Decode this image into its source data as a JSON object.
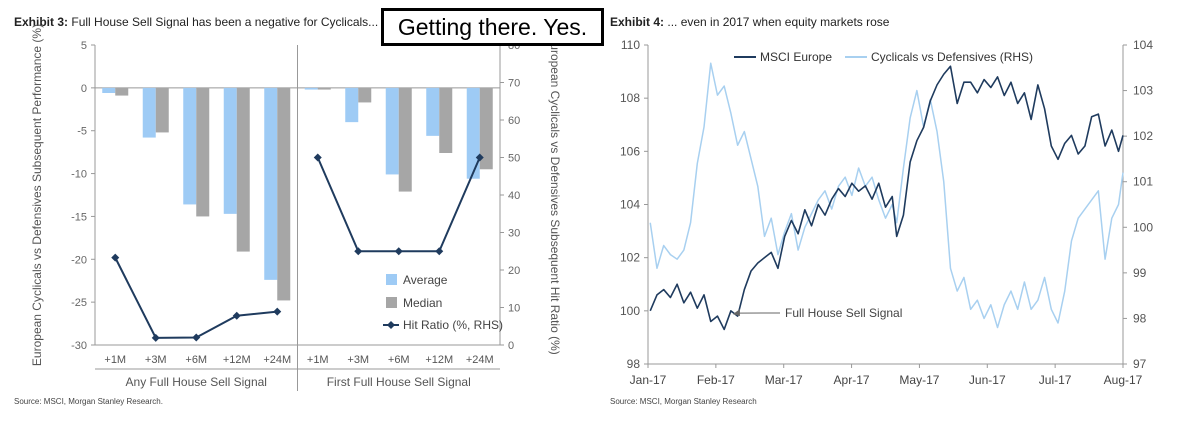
{
  "exhibit3": {
    "label": "Exhibit 3:",
    "title": "Full House Sell Signal has been a negative for Cyclicals...",
    "source": "Source: MSCI, Morgan Stanley Research."
  },
  "exhibit4": {
    "label": "Exhibit 4:",
    "title": "... even in 2017 when equity markets rose",
    "source": "Source: MSCI, Morgan Stanley Research"
  },
  "overlay_label": "Getting there. Yes.",
  "colors": {
    "average": "#9ecbf5",
    "median": "#a6a6a6",
    "hit_ratio": "#1f3b5e",
    "msci_europe": "#1f3b5e",
    "cyc_def": "#a8d0f0",
    "axis": "#999999"
  },
  "chart_data": [
    {
      "type": "bar",
      "title": "Full House Sell Signal has been a negative for Cyclicals...",
      "ylabel": "European Cyclicals vs Defensives Subsequent Performance (%)",
      "y2label": "European Cyclicals vs Defensives Subsequent Hit Ratio (%)",
      "ylim": [
        -30,
        5
      ],
      "yticks": [
        5,
        0,
        -5,
        -10,
        -15,
        -20,
        -25,
        -30
      ],
      "y2lim": [
        0,
        80
      ],
      "y2ticks": [
        80,
        70,
        60,
        50,
        40,
        30,
        20,
        10,
        0
      ],
      "groups": [
        "Any Full House Sell Signal",
        "First Full House Sell Signal"
      ],
      "categories": [
        "+1M",
        "+3M",
        "+6M",
        "+12M",
        "+24M",
        "+1M",
        "+3M",
        "+6M",
        "+12M",
        "+24M"
      ],
      "series": [
        {
          "name": "Average",
          "kind": "bar",
          "values": [
            -0.6,
            -5.8,
            -13.6,
            -14.7,
            -22.4,
            -0.2,
            -4.0,
            -10.1,
            -5.6,
            -10.6
          ]
        },
        {
          "name": "Median",
          "kind": "bar",
          "values": [
            -0.9,
            -5.2,
            -15.0,
            -19.1,
            -24.8,
            -0.2,
            -1.7,
            -12.1,
            -7.6,
            -9.5
          ]
        },
        {
          "name": "Hit Ratio (%, RHS)",
          "kind": "line",
          "axis": "right",
          "values": [
            23.3,
            1.9,
            2.0,
            7.8,
            8.9,
            50.0,
            25.0,
            25.0,
            25.0,
            50.0
          ]
        }
      ],
      "legend": "bottom-right",
      "grid": false
    },
    {
      "type": "line",
      "title": "... even in 2017 when equity markets rose",
      "xticks": [
        "Jan-17",
        "Feb-17",
        "Mar-17",
        "Apr-17",
        "May-17",
        "Jun-17",
        "Jul-17",
        "Aug-17"
      ],
      "xlim": [
        "2017-01-01",
        "2017-08-01"
      ],
      "ylim": [
        98,
        110
      ],
      "yticks": [
        110,
        108,
        106,
        104,
        102,
        100,
        98
      ],
      "y2lim": [
        97,
        104
      ],
      "y2ticks": [
        104,
        103,
        102,
        101,
        100,
        99,
        98,
        97
      ],
      "legend": "top-left",
      "grid": false,
      "annotation": {
        "text": "Full House Sell Signal",
        "x": "2017-02-07",
        "y": 99.8
      },
      "series": [
        {
          "name": "MSCI Europe",
          "axis": "left",
          "x": [
            "2017-01-02",
            "2017-01-05",
            "2017-01-08",
            "2017-01-11",
            "2017-01-14",
            "2017-01-17",
            "2017-01-20",
            "2017-01-23",
            "2017-01-26",
            "2017-01-29",
            "2017-02-01",
            "2017-02-04",
            "2017-02-07",
            "2017-02-10",
            "2017-02-13",
            "2017-02-16",
            "2017-02-19",
            "2017-02-22",
            "2017-02-25",
            "2017-02-28",
            "2017-03-03",
            "2017-03-06",
            "2017-03-09",
            "2017-03-12",
            "2017-03-15",
            "2017-03-18",
            "2017-03-21",
            "2017-03-24",
            "2017-03-27",
            "2017-03-30",
            "2017-04-02",
            "2017-04-05",
            "2017-04-08",
            "2017-04-11",
            "2017-04-14",
            "2017-04-17",
            "2017-04-20",
            "2017-04-22",
            "2017-04-25",
            "2017-04-28",
            "2017-05-01",
            "2017-05-04",
            "2017-05-07",
            "2017-05-10",
            "2017-05-13",
            "2017-05-16",
            "2017-05-19",
            "2017-05-22",
            "2017-05-25",
            "2017-05-28",
            "2017-05-31",
            "2017-06-03",
            "2017-06-06",
            "2017-06-09",
            "2017-06-12",
            "2017-06-15",
            "2017-06-18",
            "2017-06-21",
            "2017-06-24",
            "2017-06-27",
            "2017-06-30",
            "2017-07-03",
            "2017-07-06",
            "2017-07-09",
            "2017-07-12",
            "2017-07-15",
            "2017-07-18",
            "2017-07-21",
            "2017-07-24",
            "2017-07-27",
            "2017-07-30",
            "2017-08-01"
          ],
          "values": [
            100.0,
            100.6,
            100.8,
            100.5,
            101.0,
            100.3,
            100.7,
            100.1,
            100.6,
            99.6,
            99.8,
            99.3,
            100.0,
            99.8,
            100.8,
            101.5,
            101.8,
            102.0,
            102.2,
            101.6,
            102.8,
            103.4,
            102.9,
            103.8,
            103.2,
            104.0,
            103.6,
            104.2,
            104.6,
            104.3,
            104.8,
            104.5,
            104.7,
            104.2,
            104.8,
            103.9,
            104.3,
            102.8,
            103.6,
            105.6,
            106.4,
            106.9,
            107.9,
            108.5,
            108.9,
            109.2,
            107.8,
            108.6,
            108.6,
            108.2,
            108.7,
            108.4,
            108.8,
            108.1,
            108.6,
            107.8,
            108.2,
            107.2,
            108.5,
            107.6,
            106.2,
            105.7,
            106.3,
            106.6,
            105.9,
            106.2,
            107.3,
            107.4,
            106.2,
            106.8,
            106.0,
            106.6
          ]
        },
        {
          "name": "Cyclicals vs Defensives (RHS)",
          "axis": "right",
          "x": [
            "2017-01-02",
            "2017-01-05",
            "2017-01-08",
            "2017-01-11",
            "2017-01-14",
            "2017-01-17",
            "2017-01-20",
            "2017-01-23",
            "2017-01-26",
            "2017-01-29",
            "2017-02-01",
            "2017-02-04",
            "2017-02-07",
            "2017-02-10",
            "2017-02-13",
            "2017-02-16",
            "2017-02-19",
            "2017-02-22",
            "2017-02-25",
            "2017-02-28",
            "2017-03-03",
            "2017-03-06",
            "2017-03-09",
            "2017-03-12",
            "2017-03-15",
            "2017-03-18",
            "2017-03-21",
            "2017-03-24",
            "2017-03-27",
            "2017-03-30",
            "2017-04-02",
            "2017-04-05",
            "2017-04-08",
            "2017-04-11",
            "2017-04-14",
            "2017-04-17",
            "2017-04-20",
            "2017-04-22",
            "2017-04-25",
            "2017-04-28",
            "2017-05-01",
            "2017-05-04",
            "2017-05-07",
            "2017-05-10",
            "2017-05-13",
            "2017-05-16",
            "2017-05-19",
            "2017-05-22",
            "2017-05-25",
            "2017-05-28",
            "2017-05-31",
            "2017-06-03",
            "2017-06-06",
            "2017-06-09",
            "2017-06-12",
            "2017-06-15",
            "2017-06-18",
            "2017-06-21",
            "2017-06-24",
            "2017-06-27",
            "2017-06-30",
            "2017-07-03",
            "2017-07-06",
            "2017-07-09",
            "2017-07-12",
            "2017-07-15",
            "2017-07-18",
            "2017-07-21",
            "2017-07-24",
            "2017-07-27",
            "2017-07-30",
            "2017-08-01"
          ],
          "values": [
            100.1,
            99.1,
            99.6,
            99.4,
            99.3,
            99.5,
            100.1,
            101.4,
            102.2,
            103.6,
            102.9,
            103.1,
            102.5,
            101.8,
            102.1,
            101.5,
            100.9,
            99.8,
            100.2,
            99.4,
            99.9,
            100.3,
            99.5,
            100.0,
            100.3,
            100.6,
            100.8,
            100.4,
            100.9,
            101.1,
            100.7,
            101.3,
            100.9,
            101.1,
            100.6,
            100.2,
            100.5,
            100.1,
            101.3,
            102.4,
            103.0,
            102.2,
            102.8,
            102.1,
            101.0,
            99.1,
            98.6,
            98.9,
            98.2,
            98.4,
            98.0,
            98.3,
            97.8,
            98.3,
            98.6,
            98.2,
            98.8,
            98.2,
            98.4,
            98.9,
            98.2,
            97.9,
            98.6,
            99.7,
            100.2,
            100.4,
            100.6,
            100.8,
            99.3,
            100.2,
            100.5,
            101.2
          ]
        }
      ]
    }
  ]
}
